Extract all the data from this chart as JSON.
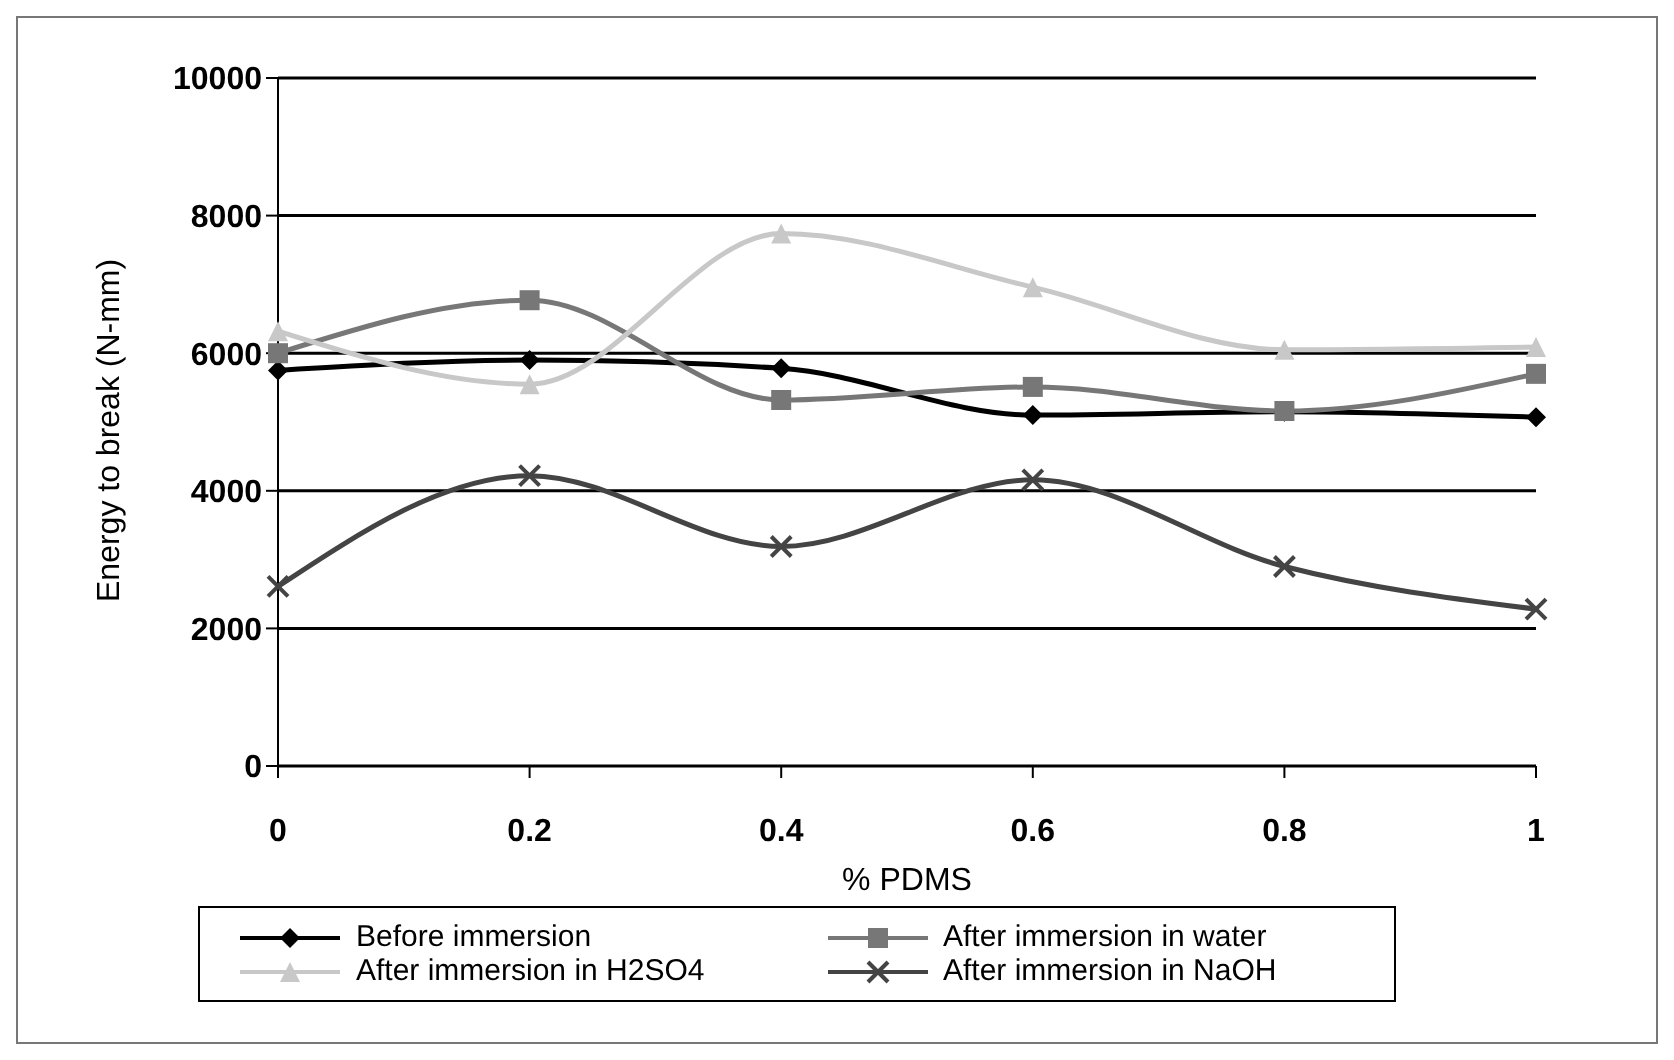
{
  "chart_data": {
    "type": "line",
    "xlabel": "% PDMS",
    "ylabel": "Energy to break (N-mm)",
    "categories": [
      "0",
      "0.2",
      "0.4",
      "0.6",
      "0.8",
      "1"
    ],
    "series": [
      {
        "name": "Before immersion",
        "color": "#000000",
        "marker": "diamond",
        "values": [
          5750,
          5900,
          5780,
          5100,
          5150,
          5070
        ]
      },
      {
        "name": "After immersion in water",
        "color": "#777777",
        "marker": "square",
        "values": [
          6000,
          6770,
          5320,
          5510,
          5160,
          5700
        ]
      },
      {
        "name": "After immersion in H2SO4",
        "color": "#c8c8c8",
        "marker": "triangle",
        "values": [
          6320,
          5550,
          7740,
          6960,
          6050,
          6090
        ]
      },
      {
        "name": "After immersion in NaOH",
        "color": "#444444",
        "marker": "cross",
        "values": [
          2610,
          4220,
          3190,
          4160,
          2900,
          2280
        ]
      }
    ],
    "ylim": [
      0,
      10000
    ],
    "yticks": [
      0,
      2000,
      4000,
      6000,
      8000,
      10000
    ],
    "grid": "y",
    "legend": "bottom",
    "line_style": "solid"
  }
}
